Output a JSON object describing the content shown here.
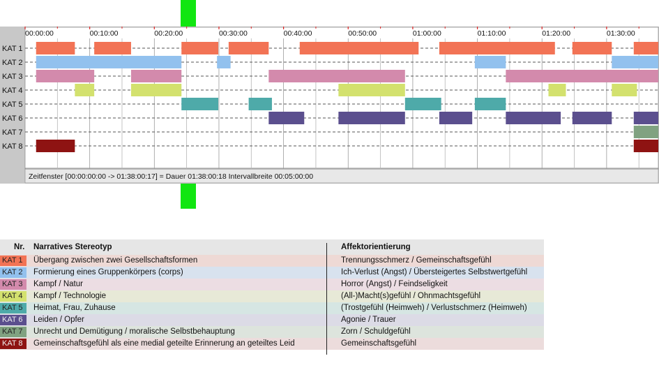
{
  "marker_color": "#11e611",
  "chart_data": {
    "type": "timeline",
    "x_unit": "hh:mm:ss",
    "x_range_min": [
      0,
      98
    ],
    "tick_labels": [
      "00:00:00",
      "00:10:00",
      "00:20:00",
      "00:30:00",
      "00:40:00",
      "00:50:00",
      "01:00:00",
      "01:10:00",
      "01:20:00",
      "01:30:00"
    ],
    "status_text": "Zeitfenster [00:00:00:00 -> 01:38:00:17] = Dauer 01:38:00:18    Intervallbreite 00:05:00:00",
    "categories": [
      {
        "label": "KAT 1",
        "color": "#f27355",
        "segments": [
          [
            1.7,
            7.7
          ],
          [
            10.7,
            16.4
          ],
          [
            24.2,
            29.9
          ],
          [
            31.5,
            37.7
          ],
          [
            42.5,
            60.9
          ],
          [
            64.1,
            82.0
          ],
          [
            84.7,
            90.8
          ],
          [
            94.2,
            98.0
          ]
        ]
      },
      {
        "label": "KAT 2",
        "color": "#92c1ee",
        "segments": [
          [
            1.7,
            24.2
          ],
          [
            29.7,
            31.8
          ],
          [
            69.6,
            74.4
          ],
          [
            90.8,
            98.0
          ]
        ]
      },
      {
        "label": "KAT 3",
        "color": "#d38aac",
        "segments": [
          [
            1.7,
            10.7
          ],
          [
            16.4,
            24.2
          ],
          [
            37.7,
            58.8
          ],
          [
            74.4,
            98.0
          ]
        ]
      },
      {
        "label": "KAT 4",
        "color": "#d3e16e",
        "segments": [
          [
            7.7,
            10.7
          ],
          [
            16.4,
            24.2
          ],
          [
            48.5,
            58.8
          ],
          [
            81.0,
            83.7
          ],
          [
            90.8,
            94.7
          ]
        ]
      },
      {
        "label": "KAT 5",
        "color": "#4eaaa9",
        "segments": [
          [
            24.2,
            29.9
          ],
          [
            34.6,
            38.2
          ],
          [
            58.8,
            64.4
          ],
          [
            69.6,
            74.4
          ]
        ]
      },
      {
        "label": "KAT 6",
        "color": "#5b4f8e",
        "segments": [
          [
            37.7,
            43.2
          ],
          [
            48.5,
            58.8
          ],
          [
            64.1,
            69.2
          ],
          [
            74.4,
            82.9
          ],
          [
            84.7,
            90.8
          ],
          [
            94.2,
            98.0
          ]
        ]
      },
      {
        "label": "KAT 7",
        "color": "#80a281",
        "segments": [
          [
            94.2,
            98.0
          ]
        ]
      },
      {
        "label": "KAT 8",
        "color": "#8e1312",
        "segments": [
          [
            1.7,
            7.7
          ],
          [
            94.2,
            98.0
          ]
        ]
      }
    ]
  },
  "legend": {
    "header": {
      "nr": "Nr.",
      "name": "Narratives Stereotyp",
      "aff": "Affektorientierung"
    },
    "rows": [
      {
        "nr": "KAT 1",
        "bg": "#f27355",
        "row_bg": "#eed9d5",
        "name": "Übergang zwischen zwei Gesellschaftsformen",
        "aff": "Trennungsschmerz / Gemeinschaftsgefühl"
      },
      {
        "nr": "KAT 2",
        "bg": "#92c1ee",
        "row_bg": "#d8e2ee",
        "name": "Formierung eines Gruppenkörpers (corps)",
        "aff": "Ich-Verlust (Angst) / Übersteigertes Selbstwertgefühl"
      },
      {
        "nr": "KAT 3",
        "bg": "#d38aac",
        "row_bg": "#ecdde3",
        "name": "Kampf / Natur",
        "aff": "Horror (Angst) / Feindseligkeit"
      },
      {
        "nr": "KAT 4",
        "bg": "#d3e16e",
        "row_bg": "#e7e9d7",
        "name": "Kampf / Technologie",
        "aff": "(All-)Macht(s)gefühl / Ohnmachtsgefühl"
      },
      {
        "nr": "KAT 5",
        "bg": "#4eaaa9",
        "row_bg": "#d6e6e3",
        "name": "Heimat, Frau, Zuhause",
        "aff": "(Trostgefühl (Heimweh) / Verlustschmerz (Heimweh)"
      },
      {
        "nr": "KAT 6",
        "bg": "#5b4f8e",
        "row_bg": "#dcdbe6",
        "name": "Leiden / Opfer",
        "aff": "Agonie / Trauer"
      },
      {
        "nr": "KAT 7",
        "bg": "#80a281",
        "row_bg": "#dde4dd",
        "name": "Unrecht und Demütigung / moralische Selbstbehauptung",
        "aff": "Zorn / Schuldgefühl"
      },
      {
        "nr": "KAT 8",
        "bg": "#8e1312",
        "row_bg": "#ecdcdc",
        "name": "Gemeinschaftsgefühl als eine medial geteilte Erinnerung an geteiltes Leid",
        "aff": "Gemeinschaftsgefühl"
      }
    ]
  }
}
